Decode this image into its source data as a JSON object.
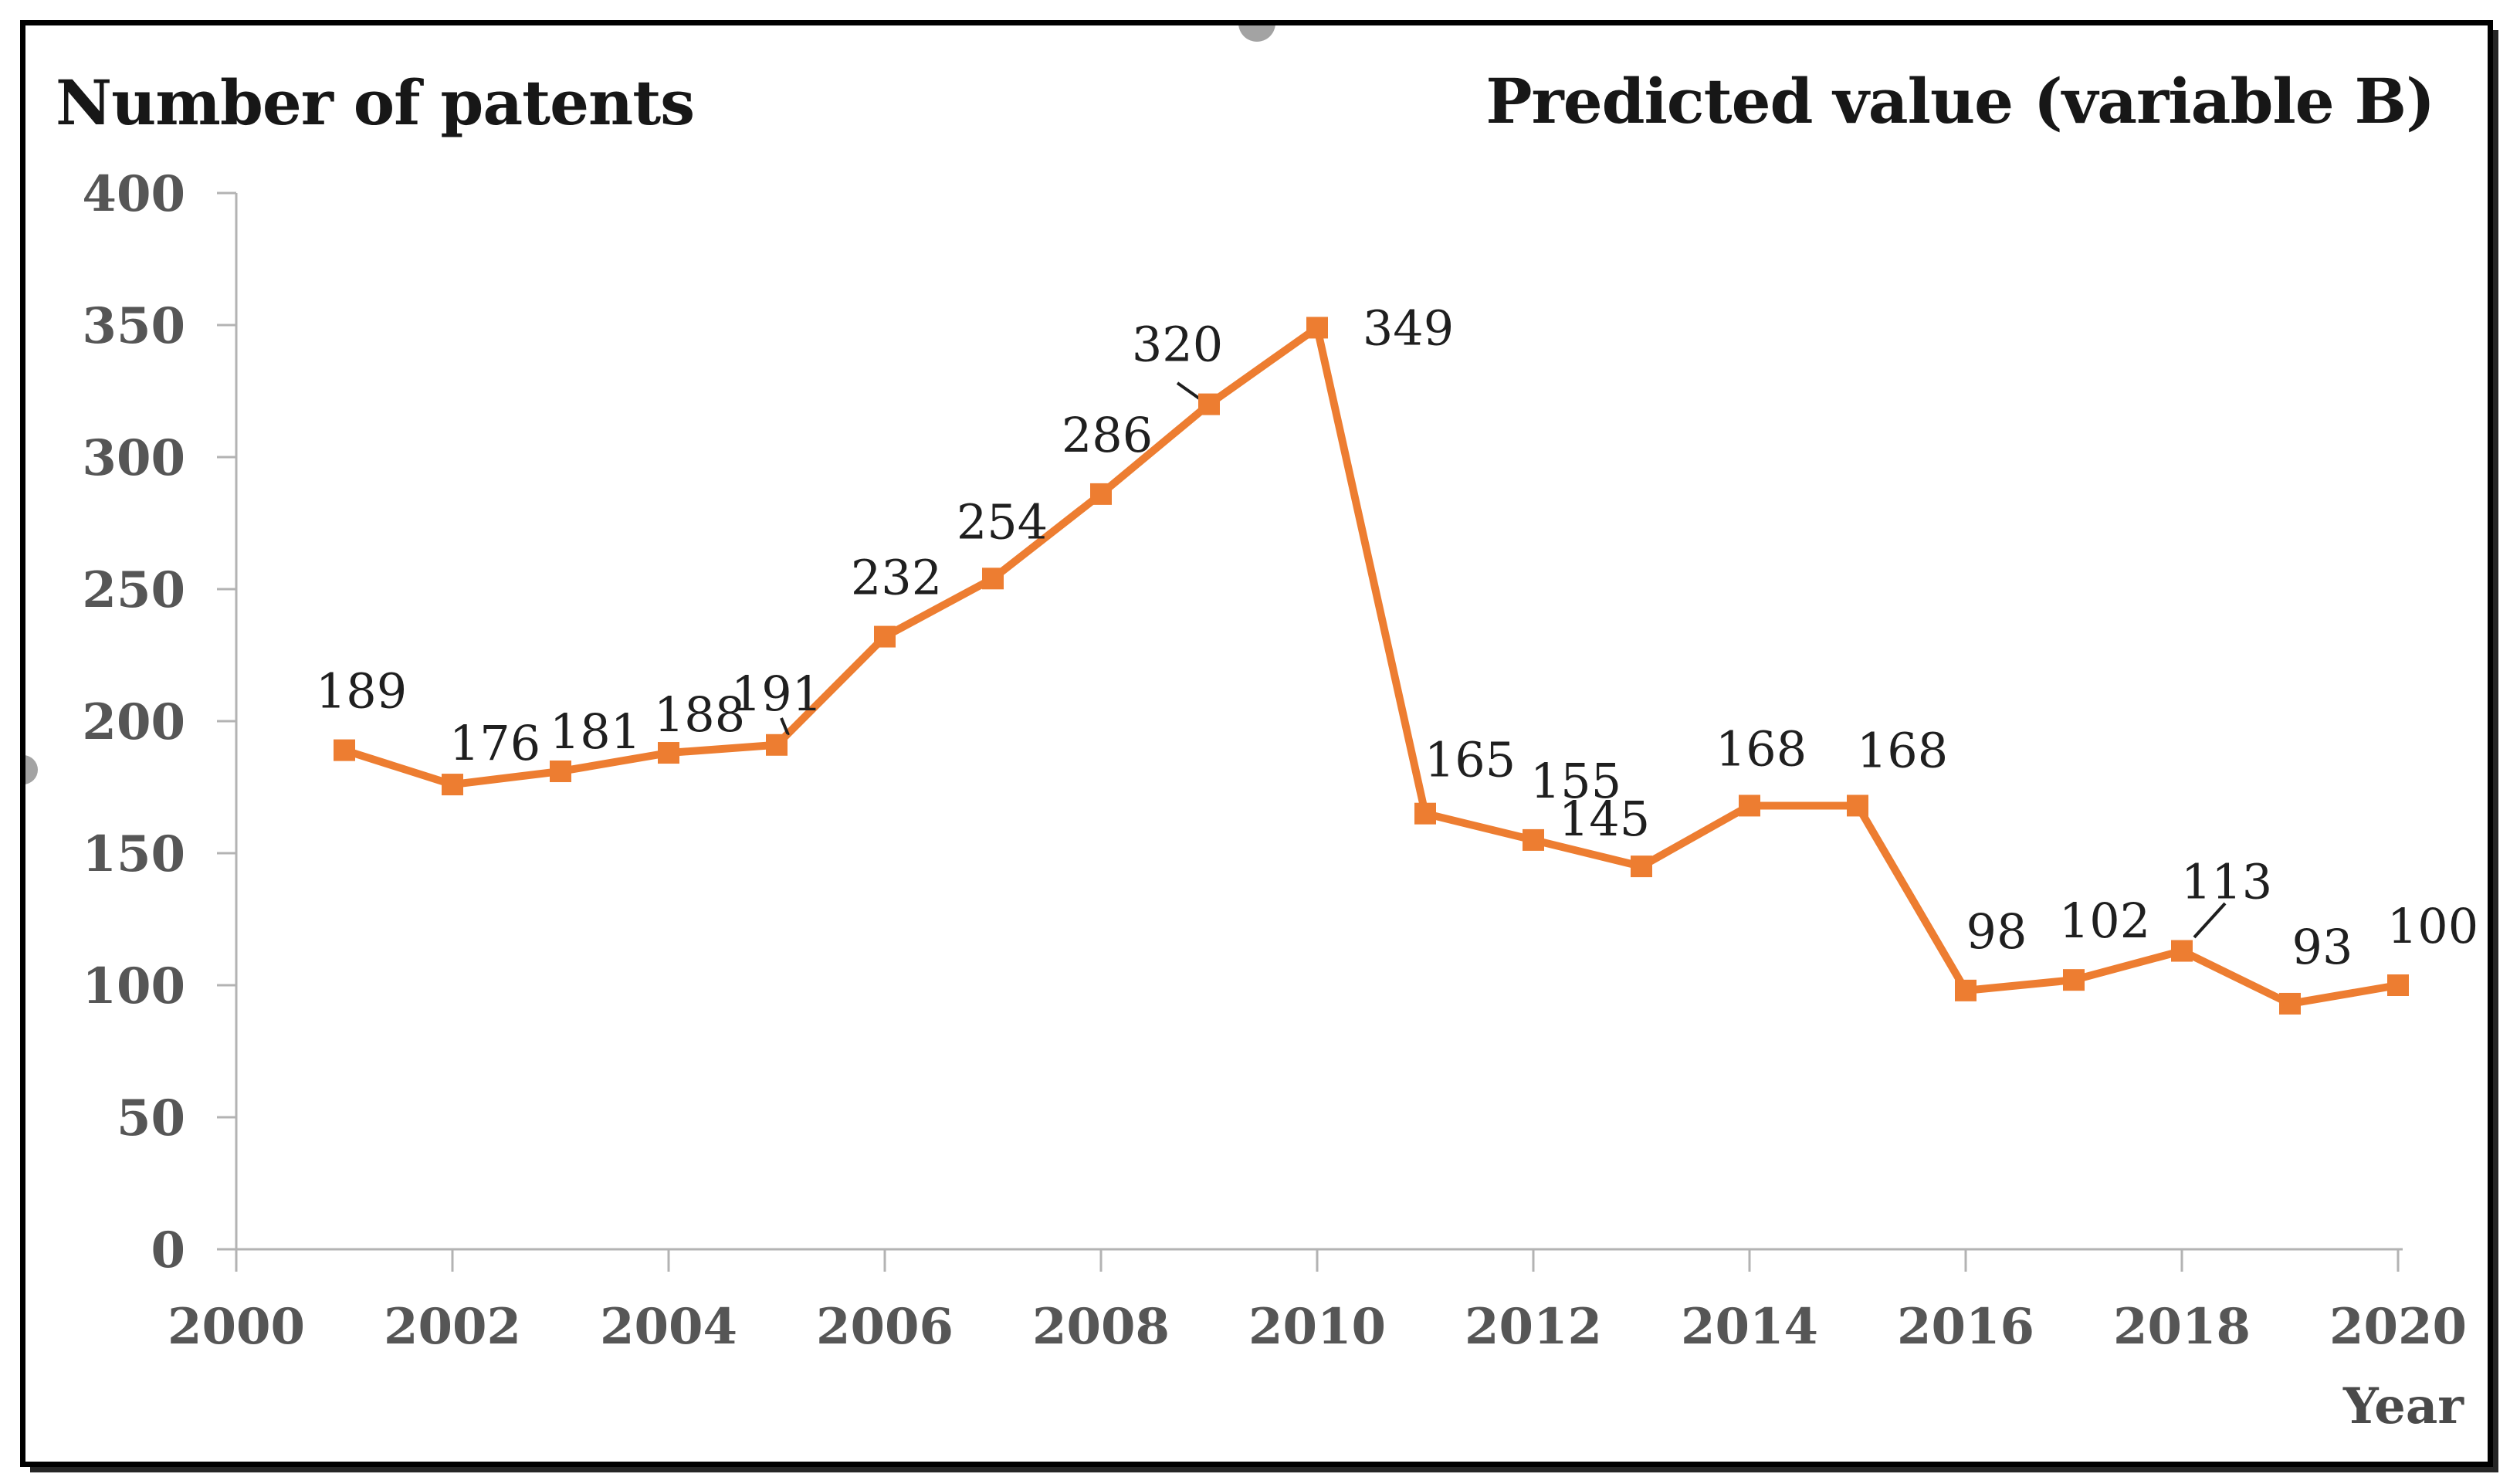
{
  "titles": {
    "left": "Number of patents",
    "right": "Predicted value (variable B)",
    "x_axis": "Year"
  },
  "chart_data": {
    "type": "line",
    "series_name": "Number of patents",
    "x": [
      2001,
      2002,
      2003,
      2004,
      2005,
      2006,
      2007,
      2008,
      2009,
      2010,
      2011,
      2012,
      2013,
      2014,
      2015,
      2016,
      2017,
      2018,
      2019,
      2020
    ],
    "values": [
      189,
      176,
      181,
      188,
      191,
      232,
      254,
      286,
      320,
      349,
      165,
      155,
      145,
      168,
      168,
      98,
      102,
      113,
      93,
      100
    ],
    "x_ticks": [
      2000,
      2002,
      2004,
      2006,
      2008,
      2010,
      2012,
      2014,
      2016,
      2018,
      2020
    ],
    "y_ticks": [
      0,
      50,
      100,
      150,
      200,
      250,
      300,
      350,
      400
    ],
    "xlim": [
      2000,
      2020
    ],
    "ylim": [
      0,
      400
    ],
    "xlabel": "Year",
    "left_axis_title": "Number of patents",
    "annotation": "Predicted value (variable B)",
    "grid": false,
    "legend": "none",
    "marker": "square",
    "data_labels_shown": true
  },
  "colors": {
    "line": "#ED7D31",
    "axis_line": "#b3b3b3",
    "tick_text": "#565656",
    "data_label_text": "#1f1f1f",
    "leader_line": "#1f1f1f",
    "title_text": "#171717",
    "frame_border": "#000000",
    "selection_handle": "#a3a3a3"
  }
}
